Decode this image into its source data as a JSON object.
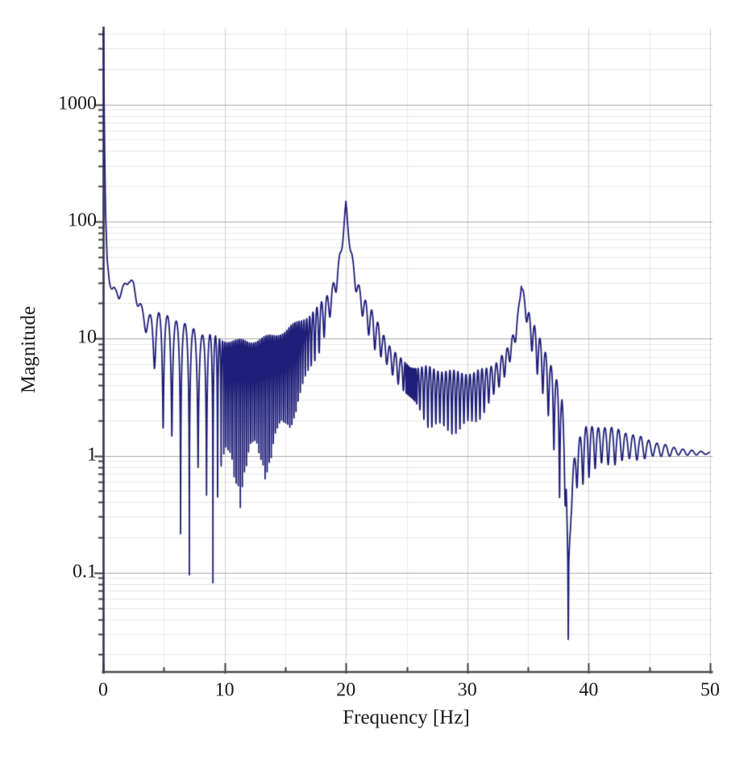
{
  "figure": {
    "background": "#ffffff",
    "plot_bg": "#ffffff"
  },
  "chart_data": {
    "type": "line",
    "title": "",
    "xlabel": "Frequency [Hz]",
    "ylabel": "Magnitude",
    "legend": null,
    "grid": "on",
    "line_color": "#1e1e78",
    "axis_spine_color_y": "#34344c",
    "axis_spine_color_x": "#4d4d4d",
    "tick_color": "#3c3c3c",
    "grid_h_major_color": "#a8a8a8",
    "grid_h_minor_color": "#e8e8e8",
    "grid_v_major_color": "#d0d0d0",
    "grid_v_minor_color": "#ececec",
    "x_axis": {
      "min": 0,
      "max": 50,
      "scale": "linear",
      "major_ticks": [
        0,
        10,
        20,
        30,
        40,
        50
      ],
      "tick_labels": [
        "0",
        "10",
        "20",
        "30",
        "40",
        "50"
      ],
      "minor_ticks": [
        5,
        15,
        25,
        35,
        45
      ]
    },
    "y_axis": {
      "min": 0.0144,
      "max": 4480,
      "scale": "log",
      "major_ticks": [
        0.1,
        1,
        10,
        100,
        1000
      ],
      "tick_labels": [
        "0.1",
        "1",
        "10",
        "100",
        "1000"
      ]
    },
    "features": {
      "dc_peak": {
        "f_hz": 0,
        "magnitude": 4400
      },
      "resonance_peaks": [
        {
          "f_hz": 20.0,
          "magnitude": 145
        },
        {
          "f_hz": 34.5,
          "magnitude": 30
        }
      ],
      "antiresonance_notches": [
        {
          "f_hz": 7.1,
          "magnitude": 0.082
        },
        {
          "f_hz": 38.3,
          "magnitude": 0.016
        }
      ],
      "local_min": {
        "f_hz": 1.3,
        "magnitude": 23.5
      },
      "local_bump": {
        "f_hz": 2.1,
        "magnitude": 32.5
      },
      "ripple_blob": {
        "f_hz": 25.3,
        "magnitude_range": [
          3.3,
          5.7
        ]
      },
      "tail_magnitude_at_50hz": 1.05
    },
    "envelope_points": [
      [
        0.02,
        4480
      ],
      [
        0.06,
        1500
      ],
      [
        0.12,
        400
      ],
      [
        0.2,
        105
      ],
      [
        0.33,
        43
      ],
      [
        0.5,
        33
      ],
      [
        0.75,
        27.5
      ],
      [
        1.0,
        24.5
      ],
      [
        1.3,
        23.5
      ],
      [
        1.7,
        27
      ],
      [
        2.1,
        32.5
      ],
      [
        2.5,
        28
      ],
      [
        2.9,
        20
      ],
      [
        3.3,
        15.5
      ],
      [
        3.8,
        12.5
      ],
      [
        4.4,
        10.3
      ],
      [
        5.0,
        9.0
      ],
      [
        5.6,
        8.2
      ],
      [
        6.3,
        7.2
      ],
      [
        7.1,
        6.4
      ],
      [
        7.9,
        5.9
      ],
      [
        8.7,
        5.5
      ],
      [
        9.6,
        5.25
      ],
      [
        11,
        5.1
      ],
      [
        12,
        5.15
      ],
      [
        13,
        5.4
      ],
      [
        14,
        5.9
      ],
      [
        15,
        6.6
      ],
      [
        16,
        8.3
      ],
      [
        17,
        10.5
      ],
      [
        17.8,
        13.5
      ],
      [
        18.6,
        19
      ],
      [
        19.2,
        30
      ],
      [
        19.6,
        55
      ],
      [
        19.85,
        95
      ],
      [
        20.0,
        140
      ],
      [
        20.15,
        95
      ],
      [
        20.4,
        55
      ],
      [
        20.8,
        30
      ],
      [
        21.4,
        19
      ],
      [
        22,
        14
      ],
      [
        23,
        9
      ],
      [
        23.8,
        6.5
      ],
      [
        24.6,
        5.2
      ],
      [
        25.3,
        4.4
      ],
      [
        26.2,
        4.0
      ],
      [
        27,
        3.7
      ],
      [
        28,
        3.5
      ],
      [
        29.5,
        3.4
      ],
      [
        30.5,
        3.5
      ],
      [
        31.5,
        4.0
      ],
      [
        32.5,
        5.0
      ],
      [
        33.3,
        6.8
      ],
      [
        34.0,
        11
      ],
      [
        34.2,
        16
      ],
      [
        34.45,
        30
      ],
      [
        34.7,
        20
      ],
      [
        35.2,
        12
      ],
      [
        35.8,
        8
      ],
      [
        36.5,
        5
      ],
      [
        37.2,
        3.0
      ],
      [
        37.8,
        1.7
      ],
      [
        38.15,
        0.6
      ],
      [
        38.28,
        0.1
      ],
      [
        38.32,
        0.02
      ],
      [
        38.36,
        0.1
      ],
      [
        38.55,
        0.45
      ],
      [
        39,
        0.9
      ],
      [
        39.8,
        1.2
      ],
      [
        41,
        1.3
      ],
      [
        42.5,
        1.27
      ],
      [
        44,
        1.2
      ],
      [
        45.5,
        1.14
      ],
      [
        47,
        1.09
      ],
      [
        48.5,
        1.06
      ],
      [
        50,
        1.05
      ]
    ],
    "ripple_depth_points": [
      [
        0,
        0.1
      ],
      [
        2.4,
        0.07
      ],
      [
        3.2,
        0.14
      ],
      [
        3.8,
        0.3
      ],
      [
        4.4,
        0.55
      ],
      [
        5.0,
        0.78
      ],
      [
        5.6,
        0.9
      ],
      [
        6.3,
        0.95
      ],
      [
        7.1,
        0.985
      ],
      [
        7.9,
        0.95
      ],
      [
        8.7,
        0.91
      ],
      [
        9.6,
        0.88
      ],
      [
        11,
        0.85
      ],
      [
        13,
        0.82
      ],
      [
        14.5,
        0.78
      ],
      [
        15.5,
        0.7
      ],
      [
        16.5,
        0.58
      ],
      [
        17.5,
        0.44
      ],
      [
        18.5,
        0.3
      ],
      [
        19.3,
        0.16
      ],
      [
        20,
        0.06
      ],
      [
        20.6,
        0.12
      ],
      [
        21.3,
        0.22
      ],
      [
        22.2,
        0.3
      ],
      [
        23.5,
        0.24
      ],
      [
        24.6,
        0.26
      ],
      [
        25.3,
        0.3
      ],
      [
        26,
        0.38
      ],
      [
        26.8,
        0.5
      ],
      [
        28,
        0.52
      ],
      [
        29.5,
        0.5
      ],
      [
        31,
        0.42
      ],
      [
        32.3,
        0.3
      ],
      [
        33.3,
        0.2
      ],
      [
        34.45,
        0.08
      ],
      [
        35.1,
        0.22
      ],
      [
        36,
        0.42
      ],
      [
        37,
        0.62
      ],
      [
        37.8,
        0.75
      ],
      [
        38.32,
        0.25
      ],
      [
        38.8,
        0.45
      ],
      [
        39.6,
        0.45
      ],
      [
        41,
        0.37
      ],
      [
        42.5,
        0.3
      ],
      [
        44,
        0.22
      ],
      [
        45.5,
        0.14
      ],
      [
        47,
        0.08
      ],
      [
        48.5,
        0.045
      ],
      [
        50,
        0.02
      ]
    ],
    "ripple_period_points": [
      [
        0,
        0.72
      ],
      [
        8.2,
        0.72
      ],
      [
        9.2,
        0.4
      ],
      [
        10,
        0.17
      ],
      [
        16,
        0.17
      ],
      [
        17,
        0.25
      ],
      [
        18.5,
        0.5
      ],
      [
        20.5,
        0.55
      ],
      [
        24.6,
        0.45
      ],
      [
        25.0,
        0.12
      ],
      [
        25.7,
        0.12
      ],
      [
        26.1,
        0.33
      ],
      [
        31,
        0.33
      ],
      [
        32.5,
        0.45
      ],
      [
        36,
        0.45
      ],
      [
        40,
        0.5
      ],
      [
        43,
        0.6
      ],
      [
        46,
        0.7
      ],
      [
        50,
        0.78
      ]
    ],
    "ripple_beat": {
      "amount": 0.1,
      "period_hz": 2.2,
      "phase": 0.8
    },
    "notch_align_hz": 7.1,
    "max_ripple_depth": 0.985
  }
}
